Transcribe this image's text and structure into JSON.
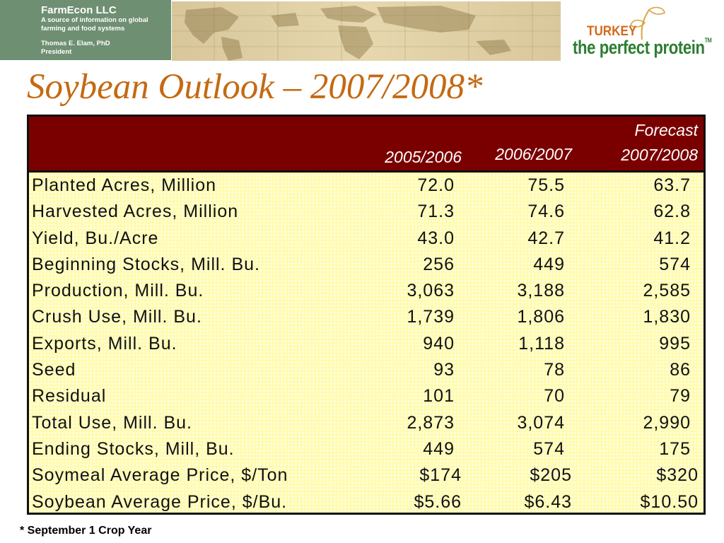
{
  "brand": {
    "name": "FarmEcon LLC",
    "tagline": "A source of information on global farming and food systems",
    "person": "Thomas E. Elam, PhD",
    "role": "President"
  },
  "logo": {
    "line1": "TURKEY",
    "line2": "the perfect protein",
    "tm": "TM"
  },
  "title": "Soybean Outlook – 2007/2008*",
  "table": {
    "forecast_label": "Forecast",
    "columns": [
      "2005/2006",
      "2006/2007",
      "2007/2008"
    ],
    "rows": [
      {
        "label": "Planted Acres, Million",
        "values": [
          "72.0",
          "75.5",
          "63.7"
        ]
      },
      {
        "label": "Harvested Acres, Million",
        "values": [
          "71.3",
          "74.6",
          "62.8"
        ]
      },
      {
        "label": "Yield, Bu./Acre",
        "values": [
          "43.0",
          "42.7",
          "41.2"
        ]
      },
      {
        "label": "Beginning Stocks, Mill. Bu.",
        "values": [
          "256",
          "449",
          "574"
        ]
      },
      {
        "label": "Production, Mill. Bu.",
        "values": [
          "3,063",
          "3,188",
          "2,585"
        ]
      },
      {
        "label": "Crush Use, Mill. Bu.",
        "values": [
          "1,739",
          "1,806",
          "1,830"
        ]
      },
      {
        "label": "Exports, Mill. Bu.",
        "values": [
          "940",
          "1,118",
          "995"
        ]
      },
      {
        "label": "Seed",
        "values": [
          "93",
          "78",
          "86"
        ]
      },
      {
        "label": "Residual",
        "values": [
          "101",
          "70",
          "79"
        ]
      },
      {
        "label": "Total Use, Mill. Bu.",
        "values": [
          "2,873",
          "3,074",
          "2,990"
        ]
      },
      {
        "label": "Ending Stocks, Mill, Bu.",
        "values": [
          "449",
          "574",
          "175"
        ]
      },
      {
        "label": "Soymeal Average Price, $/Ton",
        "values": [
          "$174",
          "$205",
          "$320"
        ]
      },
      {
        "label": "Soybean Average Price, $/Bu.",
        "values": [
          "$5.66",
          "$6.43",
          "$10.50"
        ]
      }
    ]
  },
  "footnote": "* September 1 Crop Year",
  "colors": {
    "header_bg": "#7a0000",
    "title": "#c46a12",
    "brand_bg": "#6f8f72",
    "table_fill": "#fffbb0"
  }
}
